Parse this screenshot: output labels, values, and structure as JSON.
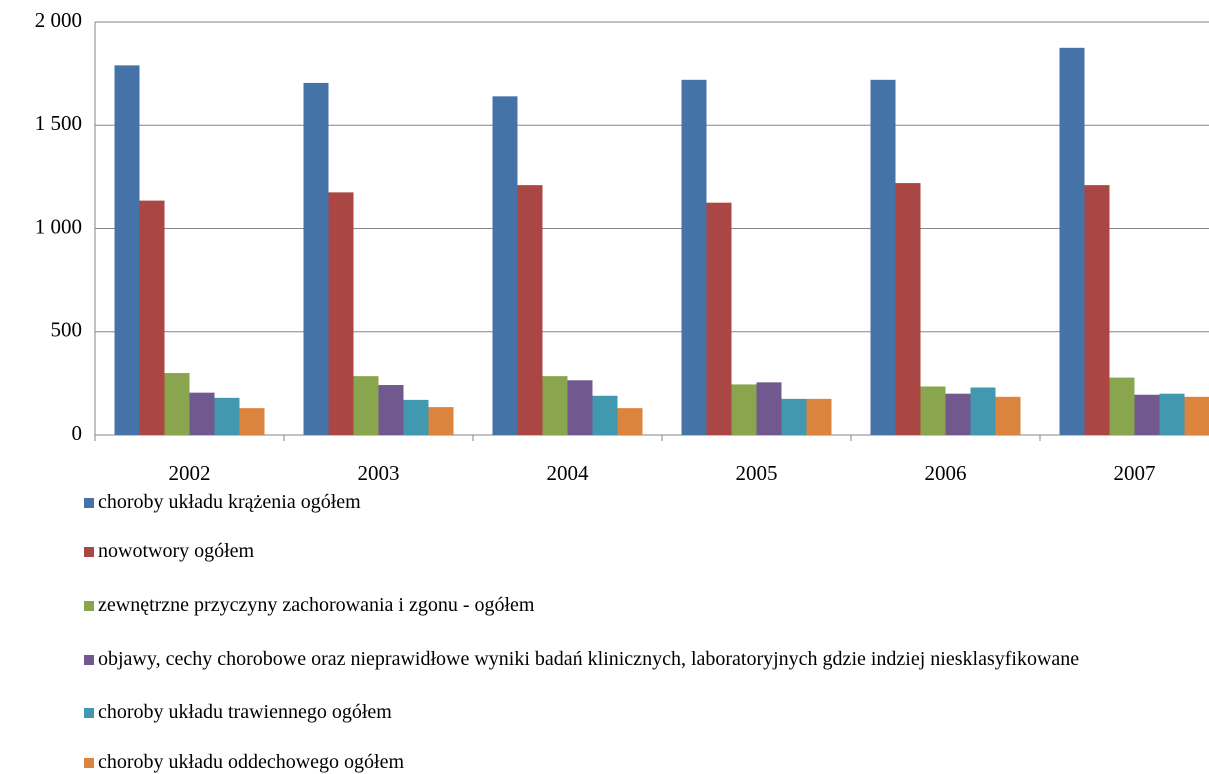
{
  "chart_data": {
    "type": "bar",
    "categories": [
      "2002",
      "2003",
      "2004",
      "2005",
      "2006",
      "2007"
    ],
    "series": [
      {
        "name": "choroby układu krążenia ogółem",
        "color": "#4572a7",
        "values": [
          1790,
          1705,
          1640,
          1720,
          1720,
          1875
        ]
      },
      {
        "name": "nowotwory ogółem",
        "color": "#aa4643",
        "values": [
          1135,
          1175,
          1210,
          1125,
          1220,
          1210
        ]
      },
      {
        "name": "zewnętrzne przyczyny zachorowania i zgonu - ogółem",
        "color": "#89a54e",
        "values": [
          300,
          285,
          285,
          245,
          235,
          278
        ]
      },
      {
        "name": "objawy, cechy chorobowe oraz nieprawidłowe wyniki badań klinicznych, laboratoryjnych gdzie indziej niesklasyfikowane",
        "color": "#71588f",
        "values": [
          205,
          242,
          265,
          255,
          200,
          195
        ]
      },
      {
        "name": "choroby układu trawiennego ogółem",
        "color": "#4198af",
        "values": [
          180,
          170,
          190,
          175,
          230,
          200
        ]
      },
      {
        "name": "choroby układu oddechowego ogółem",
        "color": "#db843d",
        "values": [
          130,
          135,
          130,
          175,
          185,
          185
        ]
      }
    ],
    "ylim": [
      0,
      2000
    ],
    "yticks": [
      0,
      500,
      {
        "value": 1000,
        "label": "1 000"
      },
      {
        "value": 1500,
        "label": "1 500"
      },
      {
        "value": 2000,
        "label": "2 000"
      }
    ],
    "grid": true
  }
}
